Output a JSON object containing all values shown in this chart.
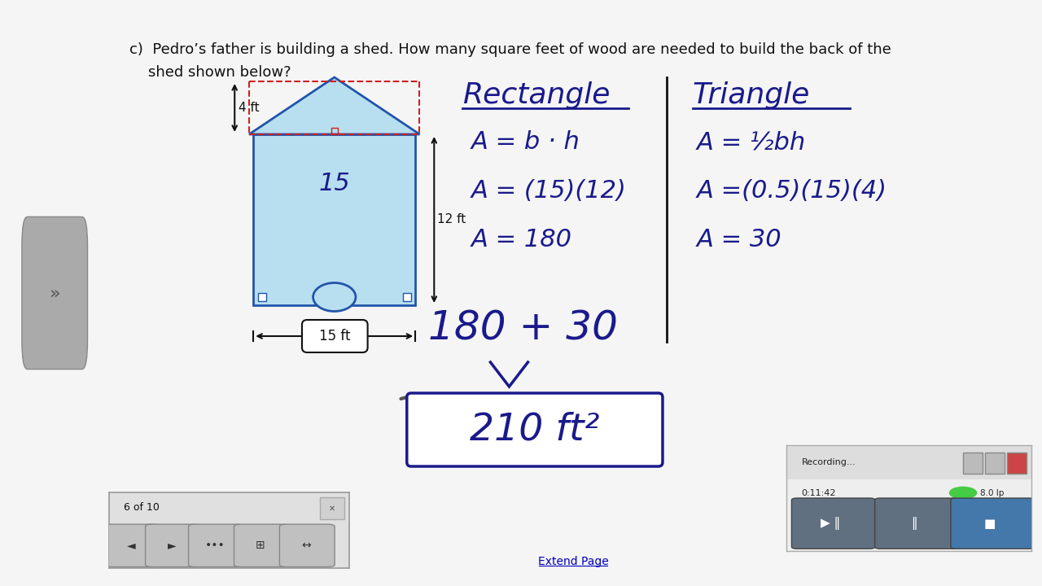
{
  "bg_color": "#f5f5f5",
  "page_bg": "#ffffff",
  "ink": "#1a1a8c",
  "black": "#111111",
  "red": "#cc2222",
  "shed_fill": "#b8dff0",
  "shed_edge": "#2255aa",
  "question": "c)  Pedro’s father is building a shed. How many square feet of wood are needed to build the back of the shed shown below?",
  "nav_label": "6 of 10",
  "extend_page": "Extend Page",
  "recording_time": "0:11:42",
  "recording_fps": "8.0 lp"
}
